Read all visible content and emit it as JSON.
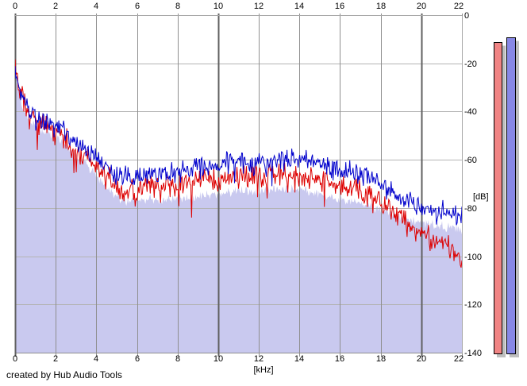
{
  "footer": {
    "credit": "created by Hub Audio Tools"
  },
  "axes": {
    "x_unit": "[kHz]",
    "y_unit": "[dB]",
    "x_tick_labels": [
      "0",
      "2",
      "4",
      "6",
      "8",
      "10",
      "12",
      "14",
      "16",
      "18",
      "20",
      "22"
    ],
    "y_tick_labels": [
      "0",
      "-20",
      "-40",
      "-60",
      "-80",
      "-100",
      "-120",
      "-140"
    ]
  },
  "chart_data": {
    "type": "line",
    "title": "",
    "xlabel": "[kHz]",
    "ylabel": "[dB]",
    "x_range": [
      0,
      22
    ],
    "y_range": [
      -140,
      0
    ],
    "x_ticks": [
      0,
      2,
      4,
      6,
      8,
      10,
      12,
      14,
      16,
      18,
      20,
      22
    ],
    "y_ticks": [
      0,
      -20,
      -40,
      -60,
      -80,
      -100,
      -120,
      -140
    ],
    "x_major_gridlines_khz": [
      0,
      10,
      20
    ],
    "grid": true,
    "legend": "none",
    "n_points": 563,
    "noise_seed": 12,
    "series": [
      {
        "name": "blue-trace",
        "color": "#0000cc",
        "noise_db": 5.5,
        "dip_prob": 0.05,
        "dip_db": 7,
        "envelope_khz_db": [
          [
            0,
            -19.5
          ],
          [
            0.1,
            -25
          ],
          [
            0.25,
            -30
          ],
          [
            0.4,
            -33
          ],
          [
            0.6,
            -37
          ],
          [
            0.8,
            -40
          ],
          [
            1,
            -42
          ],
          [
            1.3,
            -43
          ],
          [
            1.6,
            -43
          ],
          [
            2,
            -45
          ],
          [
            2.5,
            -48
          ],
          [
            3,
            -52
          ],
          [
            3.5,
            -55
          ],
          [
            4,
            -59
          ],
          [
            4.5,
            -63
          ],
          [
            5,
            -66
          ],
          [
            5.5,
            -67
          ],
          [
            6,
            -66.5
          ],
          [
            6.5,
            -66
          ],
          [
            7,
            -65.5
          ],
          [
            7.5,
            -65
          ],
          [
            8,
            -64.5
          ],
          [
            8.5,
            -64
          ],
          [
            9,
            -63
          ],
          [
            9.5,
            -62.5
          ],
          [
            10,
            -62
          ],
          [
            10.5,
            -61
          ],
          [
            11,
            -60.5
          ],
          [
            11.5,
            -61
          ],
          [
            12,
            -61
          ],
          [
            12.5,
            -60
          ],
          [
            13,
            -59.5
          ],
          [
            13.5,
            -60
          ],
          [
            14,
            -60
          ],
          [
            14.5,
            -61
          ],
          [
            15,
            -62
          ],
          [
            15.5,
            -63
          ],
          [
            16,
            -64
          ],
          [
            16.5,
            -64.5
          ],
          [
            17,
            -66
          ],
          [
            17.5,
            -68
          ],
          [
            18,
            -70.5
          ],
          [
            18.5,
            -72.5
          ],
          [
            19,
            -74.5
          ],
          [
            19.5,
            -77
          ],
          [
            20,
            -79.5
          ],
          [
            20.5,
            -81
          ],
          [
            21,
            -81
          ],
          [
            21.5,
            -82
          ],
          [
            22,
            -83.5
          ]
        ]
      },
      {
        "name": "red-trace",
        "color": "#dd0000",
        "noise_db": 6,
        "dip_prob": 0.08,
        "dip_db": 11,
        "envelope_khz_db": [
          [
            0,
            -18
          ],
          [
            0.1,
            -25
          ],
          [
            0.25,
            -31
          ],
          [
            0.4,
            -34
          ],
          [
            0.6,
            -38
          ],
          [
            0.8,
            -42
          ],
          [
            1,
            -44
          ],
          [
            1.3,
            -45.5
          ],
          [
            1.6,
            -46
          ],
          [
            2,
            -48
          ],
          [
            2.5,
            -51
          ],
          [
            3,
            -55
          ],
          [
            3.5,
            -58.5
          ],
          [
            4,
            -62.5
          ],
          [
            4.5,
            -67
          ],
          [
            5,
            -71
          ],
          [
            5.5,
            -72.5
          ],
          [
            6,
            -71.5
          ],
          [
            6.5,
            -71
          ],
          [
            7,
            -70.5
          ],
          [
            7.5,
            -70
          ],
          [
            8,
            -69.5
          ],
          [
            8.5,
            -69
          ],
          [
            9,
            -68
          ],
          [
            9.5,
            -67.5
          ],
          [
            10,
            -67
          ],
          [
            10.5,
            -66
          ],
          [
            11,
            -66
          ],
          [
            11.5,
            -67
          ],
          [
            12,
            -67
          ],
          [
            12.5,
            -66
          ],
          [
            13,
            -65.5
          ],
          [
            13.5,
            -66
          ],
          [
            14,
            -66
          ],
          [
            14.5,
            -67
          ],
          [
            15,
            -68
          ],
          [
            15.5,
            -69
          ],
          [
            16,
            -70
          ],
          [
            16.5,
            -71
          ],
          [
            17,
            -73
          ],
          [
            17.5,
            -75
          ],
          [
            18,
            -77.5
          ],
          [
            18.5,
            -80
          ],
          [
            19,
            -83
          ],
          [
            19.5,
            -86
          ],
          [
            20,
            -89
          ],
          [
            20.5,
            -91.5
          ],
          [
            21,
            -94
          ],
          [
            21.5,
            -97
          ],
          [
            22,
            -104
          ]
        ]
      }
    ],
    "fill_series": {
      "name": "spectrum-fill",
      "color": "#c9c9ef",
      "noise_db": 2.5,
      "dip_prob": 0,
      "dip_db": 0,
      "envelope_khz_db": [
        [
          0,
          -22
        ],
        [
          0.2,
          -32
        ],
        [
          0.4,
          -38
        ],
        [
          0.7,
          -43
        ],
        [
          1,
          -46
        ],
        [
          1.5,
          -48
        ],
        [
          2,
          -50
        ],
        [
          2.5,
          -54
        ],
        [
          3,
          -58
        ],
        [
          3.5,
          -61.5
        ],
        [
          4,
          -66
        ],
        [
          4.5,
          -71
        ],
        [
          5,
          -75
        ],
        [
          5.5,
          -77
        ],
        [
          6,
          -76.5
        ],
        [
          7,
          -76
        ],
        [
          8,
          -76
        ],
        [
          9,
          -75
        ],
        [
          10,
          -74
        ],
        [
          11,
          -72.5
        ],
        [
          12,
          -73
        ],
        [
          13,
          -71.5
        ],
        [
          14,
          -72
        ],
        [
          15,
          -74
        ],
        [
          16,
          -76
        ],
        [
          17,
          -78
        ],
        [
          18,
          -80
        ],
        [
          19,
          -83
        ],
        [
          20,
          -86
        ],
        [
          21,
          -87
        ],
        [
          22,
          -88.5
        ]
      ]
    },
    "meters": [
      {
        "name": "level-meter-pink",
        "color": "#f08484",
        "value_db": -11
      },
      {
        "name": "level-meter-blue",
        "color": "#8888e6",
        "value_db": -9
      }
    ],
    "colors": {
      "grid_minor_h": "#b4b4b4",
      "grid_minor_v": "#8f8f8f",
      "grid_major_v": "#606060",
      "border": "#a8a8a8",
      "meter_shadow": "#bfbfbf"
    }
  }
}
